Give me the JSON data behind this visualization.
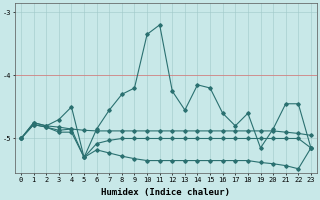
{
  "xlabel": "Humidex (Indice chaleur)",
  "xlim": [
    -0.5,
    23.5
  ],
  "ylim": [
    -5.55,
    -2.85
  ],
  "yticks": [
    -5,
    -4,
    -3
  ],
  "xticks": [
    0,
    1,
    2,
    3,
    4,
    5,
    6,
    7,
    8,
    9,
    10,
    11,
    12,
    13,
    14,
    15,
    16,
    17,
    18,
    19,
    20,
    21,
    22,
    23
  ],
  "bg_color": "#c8e8e8",
  "grid_color_v": "#a0c8c8",
  "grid_color_h": "#a0c8c8",
  "line_color": "#2a7070",
  "red_line_y": -4,
  "red_line_color": "#d08080",
  "series": [
    [
      -5.0,
      -4.75,
      -4.8,
      -4.7,
      -4.5,
      -5.3,
      -4.85,
      -4.55,
      -4.3,
      -4.2,
      -3.35,
      -3.2,
      -4.25,
      -4.55,
      -4.15,
      -4.2,
      -4.6,
      -4.8,
      -4.6,
      -5.15,
      -4.85,
      -4.45,
      -4.45,
      -5.15
    ],
    [
      -5.0,
      -4.75,
      -4.8,
      -4.82,
      -4.85,
      -4.87,
      -4.88,
      -4.88,
      -4.88,
      -4.88,
      -4.88,
      -4.88,
      -4.88,
      -4.88,
      -4.88,
      -4.88,
      -4.88,
      -4.88,
      -4.88,
      -4.88,
      -4.88,
      -4.9,
      -4.92,
      -4.95
    ],
    [
      -5.0,
      -4.78,
      -4.82,
      -4.87,
      -4.85,
      -5.3,
      -5.08,
      -5.03,
      -5.0,
      -5.0,
      -5.0,
      -5.0,
      -5.0,
      -5.0,
      -5.0,
      -5.0,
      -5.0,
      -5.0,
      -5.0,
      -5.0,
      -5.0,
      -5.0,
      -5.0,
      -5.15
    ],
    [
      -5.0,
      -4.78,
      -4.82,
      -4.9,
      -4.9,
      -5.3,
      -5.18,
      -5.23,
      -5.28,
      -5.32,
      -5.35,
      -5.35,
      -5.35,
      -5.35,
      -5.35,
      -5.35,
      -5.35,
      -5.35,
      -5.35,
      -5.38,
      -5.4,
      -5.43,
      -5.48,
      -5.15
    ]
  ],
  "marker": "D",
  "marker_size": 1.8,
  "line_width": 0.8,
  "tick_fontsize": 5,
  "label_fontsize": 6.5
}
